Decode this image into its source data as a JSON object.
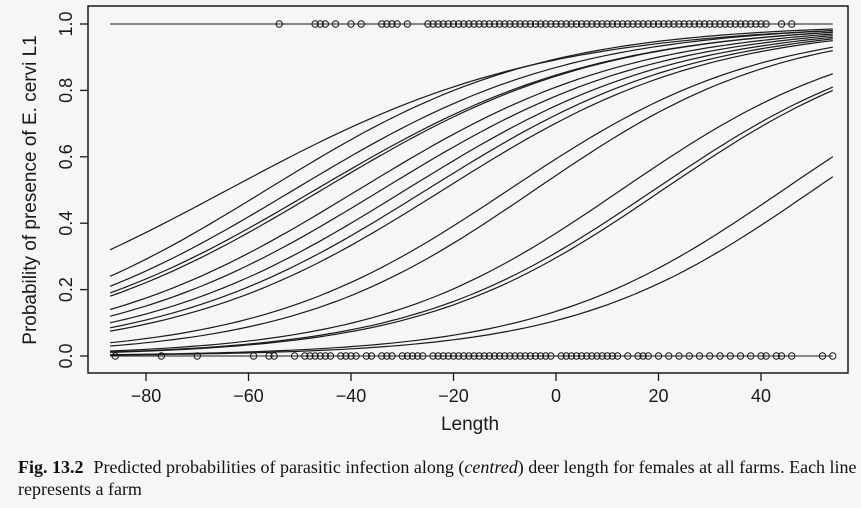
{
  "chart_data": {
    "type": "line",
    "xlabel": "Length",
    "ylabel": "Probability of presence of E. cervi L1",
    "xlim": [
      -90,
      56
    ],
    "ylim": [
      0,
      1
    ],
    "xticks": [
      -80,
      -60,
      -40,
      -20,
      0,
      20,
      40
    ],
    "yticks": [
      0.0,
      0.2,
      0.4,
      0.6,
      0.8,
      1.0
    ],
    "ytick_labels": [
      "0.0",
      "0.2",
      "0.4",
      "0.6",
      "0.8",
      "1.0"
    ],
    "x_range": [
      -87,
      54
    ],
    "series": [
      {
        "values_at_x_range": [
          0.32,
          0.98
        ]
      },
      {
        "values_at_x_range": [
          0.24,
          0.985
        ]
      },
      {
        "values_at_x_range": [
          0.21,
          0.98
        ]
      },
      {
        "values_at_x_range": [
          0.19,
          0.975
        ]
      },
      {
        "values_at_x_range": [
          0.18,
          0.975
        ]
      },
      {
        "values_at_x_range": [
          0.14,
          0.97
        ]
      },
      {
        "values_at_x_range": [
          0.12,
          0.965
        ]
      },
      {
        "values_at_x_range": [
          0.1,
          0.96
        ]
      },
      {
        "values_at_x_range": [
          0.085,
          0.955
        ]
      },
      {
        "values_at_x_range": [
          0.075,
          0.95
        ]
      },
      {
        "values_at_x_range": [
          0.04,
          0.93
        ]
      },
      {
        "values_at_x_range": [
          0.03,
          0.92
        ]
      },
      {
        "values_at_x_range": [
          0.015,
          0.85
        ]
      },
      {
        "values_at_x_range": [
          0.012,
          0.81
        ]
      },
      {
        "values_at_x_range": [
          0.011,
          0.8
        ]
      },
      {
        "values_at_x_range": [
          0.004,
          0.6
        ]
      },
      {
        "values_at_x_range": [
          0.003,
          0.54
        ]
      }
    ],
    "observations": {
      "y1_x": [
        -54,
        -47,
        -46,
        -45,
        -43,
        -40,
        -38,
        -34,
        -33,
        -32,
        -31,
        -29,
        -25,
        -24,
        -23,
        -22,
        -21,
        -20,
        -19,
        -18,
        -17,
        -16,
        -15,
        -14,
        -13,
        -12,
        -11,
        -10,
        -9,
        -8,
        -7,
        -6,
        -5,
        -4,
        -3,
        -2,
        -1,
        0,
        1,
        2,
        3,
        4,
        5,
        6,
        7,
        8,
        9,
        10,
        11,
        12,
        13,
        14,
        15,
        16,
        17,
        18,
        19,
        20,
        21,
        22,
        23,
        24,
        25,
        26,
        27,
        28,
        29,
        30,
        31,
        32,
        33,
        34,
        35,
        36,
        37,
        38,
        39,
        40,
        41,
        44,
        46
      ],
      "y0_x": [
        -86,
        -77,
        -70,
        -59,
        -56,
        -55,
        -51,
        -49,
        -48,
        -47,
        -46,
        -45,
        -44,
        -42,
        -41,
        -40,
        -39,
        -37,
        -36,
        -34,
        -33,
        -32,
        -30,
        -29,
        -28,
        -27,
        -26,
        -24,
        -23,
        -22,
        -21,
        -20,
        -19,
        -18,
        -17,
        -16,
        -15,
        -14,
        -13,
        -12,
        -11,
        -10,
        -9,
        -8,
        -7,
        -6,
        -5,
        -4,
        -3,
        -2,
        -1,
        1,
        2,
        3,
        4,
        5,
        6,
        7,
        8,
        9,
        10,
        11,
        12,
        14,
        16,
        17,
        18,
        20,
        22,
        24,
        26,
        28,
        30,
        32,
        34,
        36,
        38,
        40,
        41,
        43,
        44,
        46,
        52,
        54
      ]
    }
  },
  "caption": {
    "fig_label": "Fig. 13.2",
    "text_before": "Predicted probabilities of parasitic infection along (",
    "emph": "centred",
    "text_after": ") deer length for females at all farms. Each line represents a farm"
  }
}
